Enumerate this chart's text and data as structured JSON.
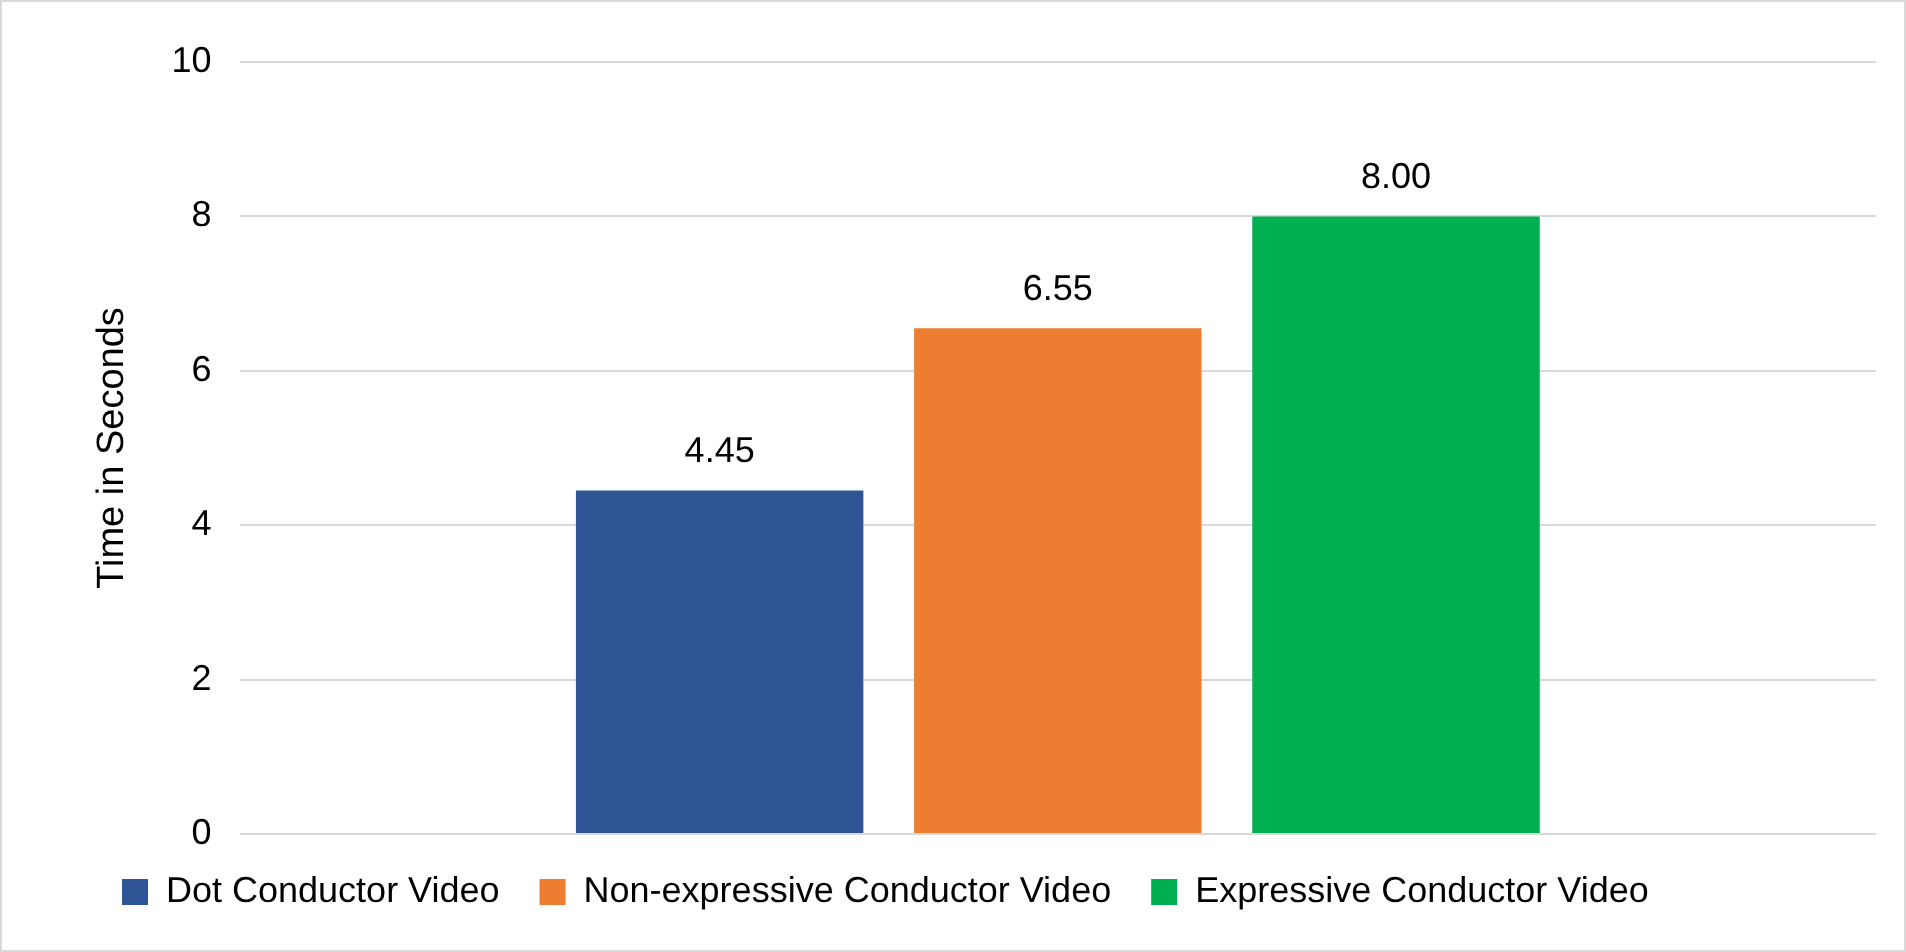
{
  "chart_data": {
    "type": "bar",
    "ylabel": "Time in Seconds",
    "categories": [
      null
    ],
    "series": [
      {
        "name": "Dot Conductor Video",
        "color": "#2f5597",
        "values": [
          4.45
        ],
        "value_labels": [
          "4.45"
        ]
      },
      {
        "name": "Non-expressive Conductor Video",
        "color": "#ed7d31",
        "values": [
          6.55
        ],
        "value_labels": [
          "6.55"
        ]
      },
      {
        "name": "Expressive Conductor Video",
        "color": "#00b050",
        "values": [
          8.0
        ],
        "value_labels": [
          "8.00"
        ]
      }
    ],
    "ylim": [
      0,
      10
    ],
    "yticks": [
      0,
      2,
      4,
      6,
      8,
      10
    ],
    "grid": "y",
    "legend": "bottom",
    "tick_labels": "y"
  }
}
